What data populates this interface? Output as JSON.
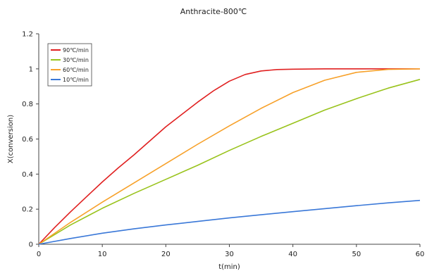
{
  "chart_data": {
    "type": "line",
    "title": "Anthracite-800℃",
    "xlabel": "t(min)",
    "ylabel": "X(conversion)",
    "xlim": [
      0,
      60
    ],
    "ylim": [
      0,
      1.2
    ],
    "x_ticks": [
      "0",
      "10",
      "20",
      "30",
      "40",
      "50",
      "60"
    ],
    "y_ticks": [
      "0",
      "0.2",
      "0.4",
      "0.6",
      "0.8",
      "1",
      "1.2"
    ],
    "grid": false,
    "legend_position": "top-left",
    "series": [
      {
        "name": "90℃/min",
        "color": "#e02020",
        "x": [
          0,
          2.5,
          5,
          7.5,
          10,
          12.5,
          15,
          17.5,
          20,
          22.5,
          25,
          27.5,
          30,
          32.5,
          35,
          37.5,
          40,
          45,
          50,
          55,
          60
        ],
        "y": [
          0,
          0.095,
          0.185,
          0.27,
          0.355,
          0.435,
          0.51,
          0.59,
          0.67,
          0.74,
          0.81,
          0.875,
          0.93,
          0.968,
          0.988,
          0.996,
          0.998,
          1.0,
          1.0,
          1.0,
          1.0
        ]
      },
      {
        "name": "30℃/min",
        "color": "#99c31c",
        "x": [
          0,
          5,
          10,
          15,
          20,
          25,
          30,
          35,
          40,
          45,
          50,
          55,
          60
        ],
        "y": [
          0,
          0.11,
          0.205,
          0.29,
          0.37,
          0.45,
          0.535,
          0.615,
          0.69,
          0.765,
          0.83,
          0.89,
          0.94
        ]
      },
      {
        "name": "60℃/min",
        "color": "#f7a12a",
        "x": [
          0,
          5,
          10,
          15,
          20,
          25,
          30,
          35,
          40,
          45,
          50,
          55,
          60
        ],
        "y": [
          0,
          0.125,
          0.24,
          0.35,
          0.46,
          0.57,
          0.675,
          0.775,
          0.865,
          0.935,
          0.98,
          0.997,
          1.0
        ]
      },
      {
        "name": "10℃/min",
        "color": "#3a78d8",
        "x": [
          0,
          5,
          10,
          15,
          20,
          25,
          30,
          35,
          40,
          45,
          50,
          55,
          60
        ],
        "y": [
          0,
          0.033,
          0.063,
          0.088,
          0.11,
          0.13,
          0.15,
          0.168,
          0.186,
          0.203,
          0.22,
          0.236,
          0.25
        ]
      }
    ]
  }
}
